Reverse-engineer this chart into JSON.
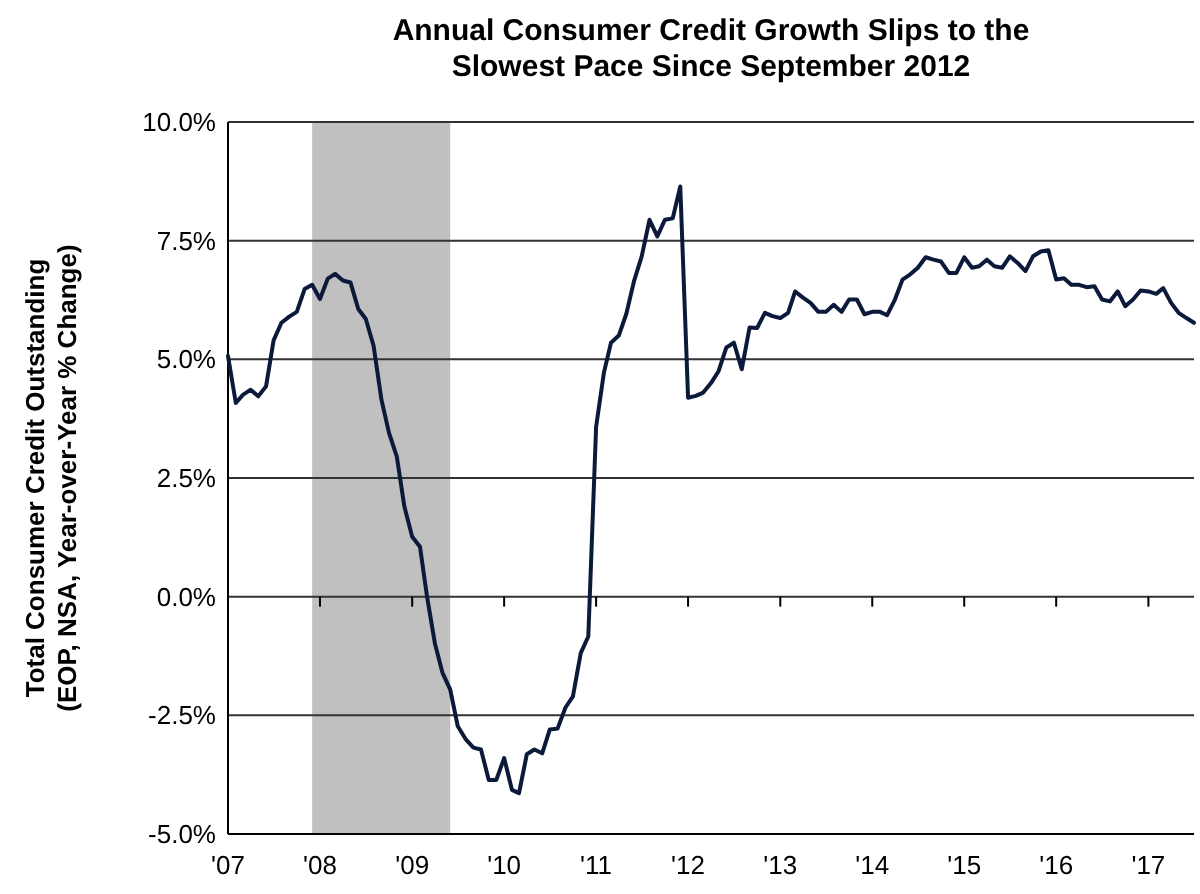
{
  "chart_data": {
    "type": "line",
    "title": "Annual Consumer Credit Growth Slips to the Slowest Pace Since September 2012",
    "ylabel": "Total Consumer Credit Outstanding (EOP, NSA, Year-over-Year % Change)",
    "x": [
      "2007-01",
      "2007-02",
      "2007-03",
      "2007-04",
      "2007-05",
      "2007-06",
      "2007-07",
      "2007-08",
      "2007-09",
      "2007-10",
      "2007-11",
      "2007-12",
      "2008-01",
      "2008-02",
      "2008-03",
      "2008-04",
      "2008-05",
      "2008-06",
      "2008-07",
      "2008-08",
      "2008-09",
      "2008-10",
      "2008-11",
      "2008-12",
      "2009-01",
      "2009-02",
      "2009-03",
      "2009-04",
      "2009-05",
      "2009-06",
      "2009-07",
      "2009-08",
      "2009-09",
      "2009-10",
      "2009-11",
      "2009-12",
      "2010-01",
      "2010-02",
      "2010-03",
      "2010-04",
      "2010-05",
      "2010-06",
      "2010-07",
      "2010-08",
      "2010-09",
      "2010-10",
      "2010-11",
      "2010-12",
      "2011-01",
      "2011-02",
      "2011-03",
      "2011-04",
      "2011-05",
      "2011-06",
      "2011-07",
      "2011-08",
      "2011-09",
      "2011-10",
      "2011-11",
      "2011-12",
      "2012-01",
      "2012-02",
      "2012-03",
      "2012-04",
      "2012-05",
      "2012-06",
      "2012-07",
      "2012-08",
      "2012-09",
      "2012-10",
      "2012-11",
      "2012-12",
      "2013-01",
      "2013-02",
      "2013-03",
      "2013-04",
      "2013-05",
      "2013-06",
      "2013-07",
      "2013-08",
      "2013-09",
      "2013-10",
      "2013-11",
      "2013-12",
      "2014-01",
      "2014-02",
      "2014-03",
      "2014-04",
      "2014-05",
      "2014-06",
      "2014-07",
      "2014-08",
      "2014-09",
      "2014-10",
      "2014-11",
      "2014-12",
      "2015-01",
      "2015-02",
      "2015-03",
      "2015-04",
      "2015-05",
      "2015-06",
      "2015-07",
      "2015-08",
      "2015-09",
      "2015-10",
      "2015-11",
      "2015-12",
      "2016-01",
      "2016-02",
      "2016-03",
      "2016-04",
      "2016-05",
      "2016-06",
      "2016-07",
      "2016-08",
      "2016-09",
      "2016-10",
      "2016-11",
      "2016-12",
      "2017-01",
      "2017-02",
      "2017-03",
      "2017-04",
      "2017-05",
      "2017-06",
      "2017-07"
    ],
    "series": [
      {
        "color": "#0b1a3a",
        "values": [
          5.07,
          4.08,
          4.25,
          4.36,
          4.22,
          4.43,
          5.4,
          5.77,
          5.9,
          6.0,
          6.48,
          6.57,
          6.27,
          6.7,
          6.8,
          6.66,
          6.62,
          6.06,
          5.85,
          5.28,
          4.15,
          3.45,
          2.95,
          1.9,
          1.26,
          1.05,
          0.0,
          -0.98,
          -1.6,
          -1.96,
          -2.73,
          -3.0,
          -3.18,
          -3.22,
          -3.86,
          -3.86,
          -3.4,
          -4.07,
          -4.14,
          -3.32,
          -3.22,
          -3.3,
          -2.8,
          -2.78,
          -2.34,
          -2.1,
          -1.19,
          -0.84,
          3.58,
          4.72,
          5.35,
          5.5,
          5.96,
          6.66,
          7.17,
          7.94,
          7.59,
          7.94,
          7.97,
          8.64,
          4.19,
          4.23,
          4.3,
          4.5,
          4.75,
          5.25,
          5.35,
          4.79,
          5.67,
          5.66,
          5.98,
          5.91,
          5.87,
          5.98,
          6.43,
          6.3,
          6.19,
          6.0,
          6.0,
          6.15,
          6.0,
          6.26,
          6.26,
          5.95,
          6.0,
          6.0,
          5.93,
          6.26,
          6.68,
          6.79,
          6.93,
          7.15,
          7.1,
          7.06,
          6.82,
          6.82,
          7.15,
          6.93,
          6.96,
          7.1,
          6.96,
          6.93,
          7.17,
          7.03,
          6.86,
          7.17,
          7.27,
          7.3,
          6.68,
          6.71,
          6.57,
          6.57,
          6.52,
          6.54,
          6.26,
          6.22,
          6.43,
          6.12,
          6.26,
          6.45,
          6.43,
          6.38,
          6.5,
          6.19,
          5.98,
          5.87,
          5.77
        ]
      }
    ],
    "xlim": [
      "2007-01",
      "2017-07"
    ],
    "xticks": [
      {
        "value": "2007-01",
        "label": "'07"
      },
      {
        "value": "2008-01",
        "label": "'08"
      },
      {
        "value": "2009-01",
        "label": "'09"
      },
      {
        "value": "2010-01",
        "label": "'10"
      },
      {
        "value": "2011-01",
        "label": "'11"
      },
      {
        "value": "2012-01",
        "label": "'12"
      },
      {
        "value": "2013-01",
        "label": "'13"
      },
      {
        "value": "2014-01",
        "label": "'14"
      },
      {
        "value": "2015-01",
        "label": "'15"
      },
      {
        "value": "2016-01",
        "label": "'16"
      },
      {
        "value": "2017-01",
        "label": "'17"
      }
    ],
    "ylim": [
      -5,
      10
    ],
    "yticks": [
      {
        "value": -5,
        "label": "-5.0%"
      },
      {
        "value": -2.5,
        "label": "-2.5%"
      },
      {
        "value": 0,
        "label": "0.0%"
      },
      {
        "value": 2.5,
        "label": "2.5%"
      },
      {
        "value": 5,
        "label": "5.0%"
      },
      {
        "value": 7.5,
        "label": "7.5%"
      },
      {
        "value": 10,
        "label": "10.0%"
      }
    ],
    "bands": [
      {
        "axis": "x",
        "from": "2007-12",
        "to": "2009-06",
        "color": "#c0c0c0"
      }
    ],
    "grid": "y",
    "marker": "none",
    "line_style": "solid"
  }
}
